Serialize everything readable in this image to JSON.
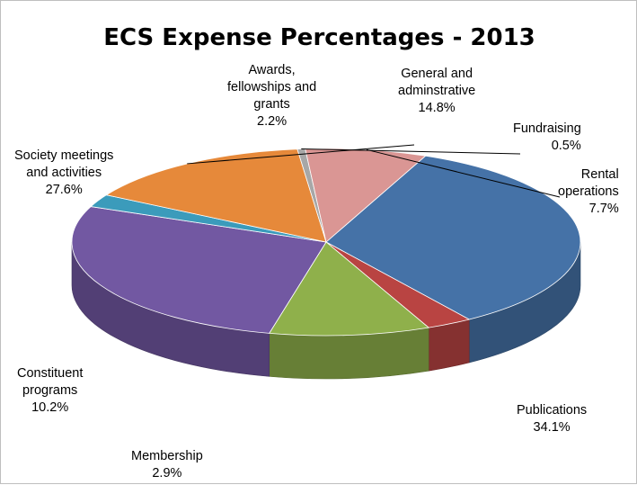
{
  "chart_data": {
    "type": "pie",
    "title": "ECS Expense Percentages - 2013",
    "three_d": true,
    "slices": [
      {
        "name": "Publications",
        "lines": [
          "Publications"
        ],
        "value": 34.1,
        "label": "34.1%",
        "color": "#4572A7"
      },
      {
        "name": "Membership",
        "lines": [
          "Membership"
        ],
        "value": 2.9,
        "label": "2.9%",
        "color": "#B94442"
      },
      {
        "name": "Constituent programs",
        "lines": [
          "Constituent",
          "programs"
        ],
        "value": 10.2,
        "label": "10.2%",
        "color": "#8FB04B"
      },
      {
        "name": "Society meetings and activities",
        "lines": [
          "Society meetings",
          "and activities"
        ],
        "value": 27.6,
        "label": "27.6%",
        "color": "#7258A2"
      },
      {
        "name": "Awards, fellowships and grants",
        "lines": [
          "Awards,",
          "fellowships and",
          "grants"
        ],
        "value": 2.2,
        "label": "2.2%",
        "color": "#3B9BBB"
      },
      {
        "name": "General and adminstrative",
        "lines": [
          "General and",
          "adminstrative"
        ],
        "value": 14.8,
        "label": "14.8%",
        "color": "#E6893A"
      },
      {
        "name": "Fundraising",
        "lines": [
          "Fundraising"
        ],
        "value": 0.5,
        "label": "0.5%",
        "color": "#A7A7A7"
      },
      {
        "name": "Rental operations",
        "lines": [
          "Rental",
          "operations"
        ],
        "value": 7.7,
        "label": "7.7%",
        "color": "#DA9694"
      }
    ],
    "legend": "none"
  }
}
